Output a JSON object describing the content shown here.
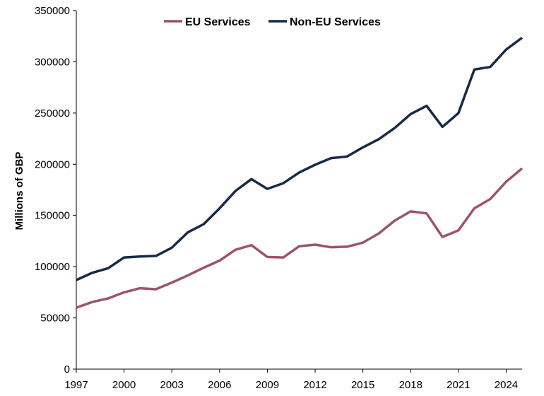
{
  "chart_data": {
    "type": "line",
    "title": "",
    "xlabel": "",
    "ylabel": "Millions of GBP",
    "x": [
      1997,
      1998,
      1999,
      2000,
      2001,
      2002,
      2003,
      2004,
      2005,
      2006,
      2007,
      2008,
      2009,
      2010,
      2011,
      2012,
      2013,
      2014,
      2015,
      2016,
      2017,
      2018,
      2019,
      2020,
      2021,
      2022,
      2023,
      2024,
      2025
    ],
    "xticks": [
      "1997",
      "2000",
      "2003",
      "2006",
      "2009",
      "2012",
      "2015",
      "2018",
      "2021",
      "2024"
    ],
    "xlim": [
      1997,
      2025
    ],
    "ylim": [
      0,
      350000
    ],
    "yticks": [
      "0",
      "50000",
      "100000",
      "150000",
      "200000",
      "250000",
      "300000",
      "350000"
    ],
    "legend_position": "top",
    "series": [
      {
        "name": "EU Services",
        "color": "#9c5468",
        "values": [
          60000,
          65500,
          69000,
          75000,
          79000,
          78000,
          84500,
          91500,
          99000,
          106000,
          116500,
          121000,
          109500,
          109000,
          120000,
          121500,
          119000,
          119500,
          123500,
          132500,
          145000,
          154000,
          152000,
          129000,
          135500,
          157000,
          166000,
          183000,
          196000
        ]
      },
      {
        "name": "Non-EU Services",
        "color": "#172a45",
        "values": [
          87000,
          94000,
          98500,
          109000,
          110000,
          110500,
          118500,
          133500,
          141500,
          157000,
          174000,
          185500,
          176000,
          181500,
          192000,
          199500,
          206000,
          207500,
          216500,
          224500,
          235500,
          249000,
          257000,
          236500,
          250000,
          292500,
          295000,
          312000,
          323500
        ]
      }
    ]
  }
}
